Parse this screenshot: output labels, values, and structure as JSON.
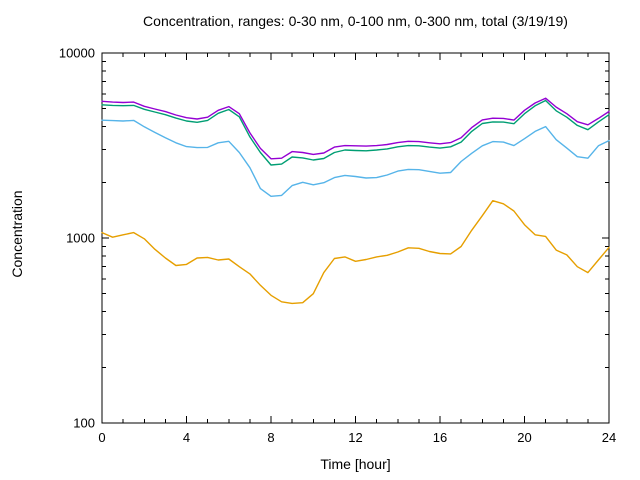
{
  "chart_data": {
    "type": "line",
    "title": "Concentration, ranges: 0-30 nm, 0-100 nm, 0-300 nm, total (3/19/19)",
    "xlabel": "Time [hour]",
    "ylabel": "Concentration",
    "x_range": [
      0,
      24
    ],
    "x_major_ticks": [
      0,
      4,
      8,
      12,
      16,
      20,
      24
    ],
    "x_minor_step": 1,
    "y_scale": "log",
    "y_range": [
      100,
      10000
    ],
    "y_major_ticks": [
      100,
      1000,
      10000
    ],
    "y_minor_per_decade": true,
    "grid": false,
    "legend": "none",
    "background_color": "#ffffff",
    "axis_color": "#000000",
    "text_color": "#000000",
    "x": [
      0,
      0.5,
      1,
      1.5,
      2,
      2.5,
      3,
      3.5,
      4,
      4.5,
      5,
      5.5,
      6,
      6.5,
      7,
      7.5,
      8,
      8.5,
      9,
      9.5,
      10,
      10.5,
      11,
      11.5,
      12,
      12.5,
      13,
      13.5,
      14,
      14.5,
      15,
      15.5,
      16,
      16.5,
      17,
      17.5,
      18,
      18.5,
      19,
      19.5,
      20,
      20.5,
      21,
      21.5,
      22,
      22.5,
      23,
      23.5,
      24
    ],
    "series": [
      {
        "name": "0-30 nm",
        "color": "#E69F00",
        "values": [
          1070,
          1010,
          1040,
          1070,
          990,
          870,
          780,
          710,
          720,
          780,
          785,
          760,
          770,
          700,
          640,
          555,
          490,
          452,
          443,
          447,
          500,
          650,
          775,
          790,
          748,
          765,
          790,
          806,
          840,
          885,
          880,
          845,
          825,
          820,
          900,
          1100,
          1320,
          1590,
          1530,
          1400,
          1180,
          1040,
          1020,
          860,
          810,
          700,
          650,
          760,
          890
        ]
      },
      {
        "name": "0-100 nm",
        "color": "#56B4E9",
        "values": [
          4330,
          4310,
          4290,
          4320,
          3990,
          3720,
          3480,
          3270,
          3120,
          3080,
          3090,
          3270,
          3330,
          2900,
          2400,
          1850,
          1680,
          1700,
          1920,
          2000,
          1940,
          1990,
          2120,
          2180,
          2150,
          2110,
          2120,
          2190,
          2300,
          2350,
          2340,
          2290,
          2240,
          2260,
          2590,
          2870,
          3150,
          3320,
          3300,
          3160,
          3440,
          3770,
          4000,
          3400,
          3060,
          2750,
          2700,
          3150,
          3360
        ]
      },
      {
        "name": "0-300 nm",
        "color": "#009E73",
        "values": [
          5250,
          5210,
          5190,
          5210,
          4960,
          4800,
          4640,
          4450,
          4290,
          4220,
          4320,
          4720,
          4950,
          4520,
          3520,
          2900,
          2480,
          2510,
          2740,
          2710,
          2640,
          2690,
          2900,
          2990,
          2970,
          2960,
          2990,
          3030,
          3110,
          3160,
          3150,
          3100,
          3060,
          3110,
          3300,
          3770,
          4160,
          4240,
          4230,
          4150,
          4700,
          5180,
          5540,
          4870,
          4500,
          4060,
          3850,
          4240,
          4640
        ]
      },
      {
        "name": "total",
        "color": "#9400D3",
        "values": [
          5480,
          5430,
          5400,
          5430,
          5150,
          4980,
          4820,
          4620,
          4470,
          4400,
          4500,
          4900,
          5130,
          4700,
          3700,
          3050,
          2680,
          2700,
          2930,
          2900,
          2830,
          2880,
          3100,
          3160,
          3150,
          3140,
          3160,
          3200,
          3280,
          3330,
          3320,
          3270,
          3230,
          3280,
          3480,
          3950,
          4350,
          4440,
          4430,
          4340,
          4900,
          5370,
          5700,
          5100,
          4700,
          4250,
          4090,
          4430,
          4830
        ]
      }
    ]
  }
}
